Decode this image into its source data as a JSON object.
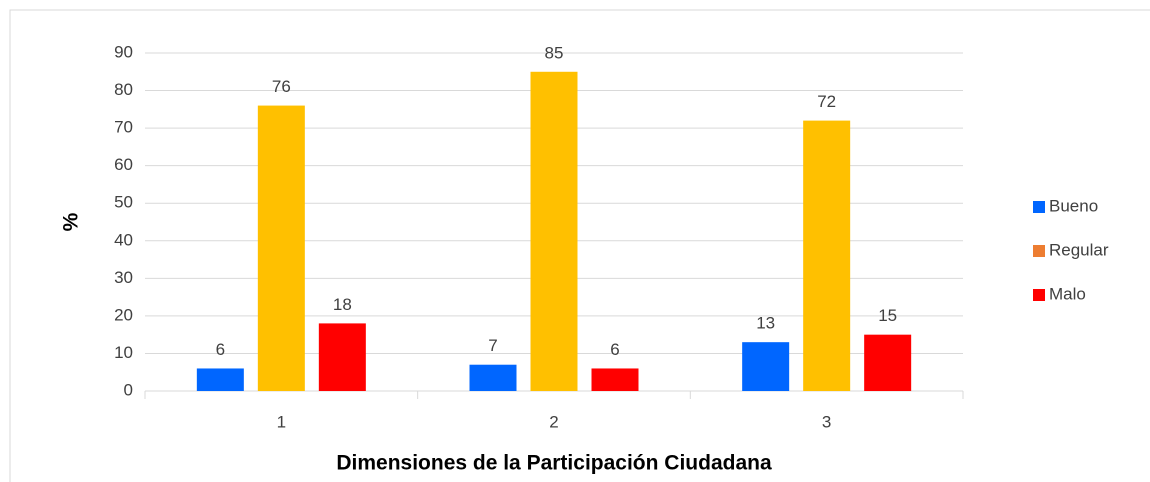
{
  "chart_data": {
    "type": "bar",
    "x_label": "Dimensiones de la Participación Ciudadana",
    "y_label": "%",
    "categories": [
      "1",
      "2",
      "3"
    ],
    "series": [
      {
        "name": "Bueno",
        "color": "#0066FF",
        "values": [
          6,
          7,
          13
        ]
      },
      {
        "name": "Regular",
        "color": "#FFC000",
        "legend_color": "#ED7D31",
        "values": [
          76,
          85,
          72
        ]
      },
      {
        "name": "Malo",
        "color": "#FF0000",
        "values": [
          18,
          6,
          15
        ]
      }
    ],
    "ylim": [
      0,
      90
    ],
    "yticks": [
      0,
      10,
      20,
      30,
      40,
      50,
      60,
      70,
      80,
      90
    ],
    "grid": true,
    "legend": "right",
    "value_labels_shown": true
  }
}
